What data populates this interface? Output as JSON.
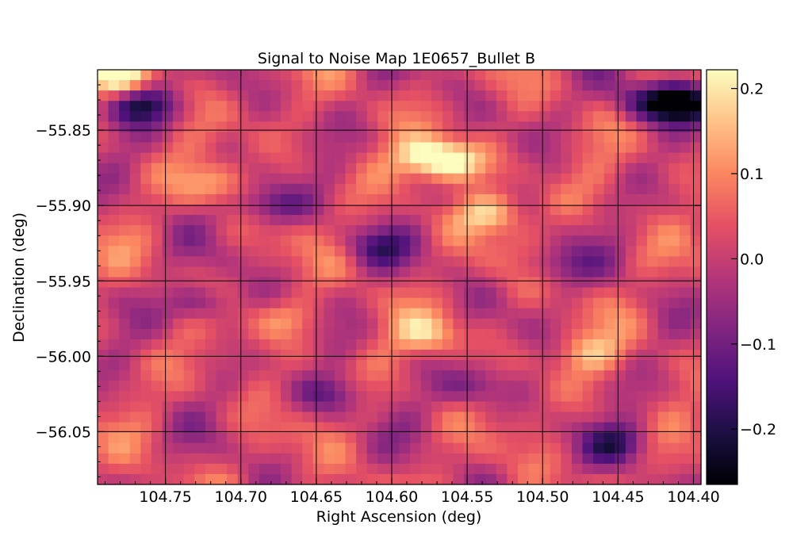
{
  "chart_data": {
    "type": "heatmap",
    "title": "Signal to Noise Map 1E0657_Bullet B",
    "xlabel": "Right Ascension (deg)",
    "ylabel": "Declination (deg)",
    "colormap": "magma",
    "x_axis_inverted": true,
    "xlim": [
      104.795,
      104.395
    ],
    "ylim": [
      -56.085,
      -55.81
    ],
    "x_ticks": [
      104.75,
      104.7,
      104.65,
      104.6,
      104.55,
      104.5,
      104.45,
      104.4
    ],
    "x_tick_labels": [
      "104.75",
      "104.70",
      "104.65",
      "104.60",
      "104.55",
      "104.50",
      "104.45",
      "104.40"
    ],
    "y_ticks": [
      -55.85,
      -55.9,
      -55.95,
      -56.0,
      -56.05
    ],
    "y_tick_labels": [
      "−55.85",
      "−55.90",
      "−55.95",
      "−56.00",
      "−56.05"
    ],
    "grid": true,
    "colorbar": {
      "range": [
        -0.265,
        0.222
      ],
      "ticks": [
        0.2,
        0.1,
        0.0,
        -0.1,
        -0.2
      ],
      "tick_labels": [
        "0.2",
        "0.1",
        "0.0",
        "−0.1",
        "−0.2"
      ]
    },
    "grid_size": [
      56,
      40
    ],
    "features": [
      {
        "ra": 104.765,
        "dec": -55.833,
        "value": -0.21
      },
      {
        "ra": 104.405,
        "dec": -55.832,
        "value": -0.26
      },
      {
        "ra": 104.43,
        "dec": -55.832,
        "value": -0.17
      },
      {
        "ra": 104.78,
        "dec": -55.815,
        "value": 0.18
      },
      {
        "ra": 104.575,
        "dec": -55.868,
        "value": 0.2
      },
      {
        "ra": 104.555,
        "dec": -55.872,
        "value": 0.15
      },
      {
        "ra": 104.535,
        "dec": -55.905,
        "value": 0.16
      },
      {
        "ra": 104.68,
        "dec": -55.9,
        "value": -0.14
      },
      {
        "ra": 104.725,
        "dec": -55.965,
        "value": -0.14
      },
      {
        "ra": 104.61,
        "dec": -55.928,
        "value": -0.12
      },
      {
        "ra": 104.45,
        "dec": -56.058,
        "value": -0.16
      },
      {
        "ra": 104.64,
        "dec": -56.025,
        "value": -0.12
      },
      {
        "ra": 104.575,
        "dec": -55.985,
        "value": 0.13
      },
      {
        "ra": 104.67,
        "dec": -55.975,
        "value": 0.09
      },
      {
        "ra": 104.72,
        "dec": -55.885,
        "value": 0.1
      },
      {
        "ra": 104.47,
        "dec": -55.998,
        "value": 0.11
      },
      {
        "ra": 104.545,
        "dec": -56.02,
        "value": -0.11
      },
      {
        "ra": 104.49,
        "dec": -55.94,
        "value": -0.1
      }
    ]
  }
}
